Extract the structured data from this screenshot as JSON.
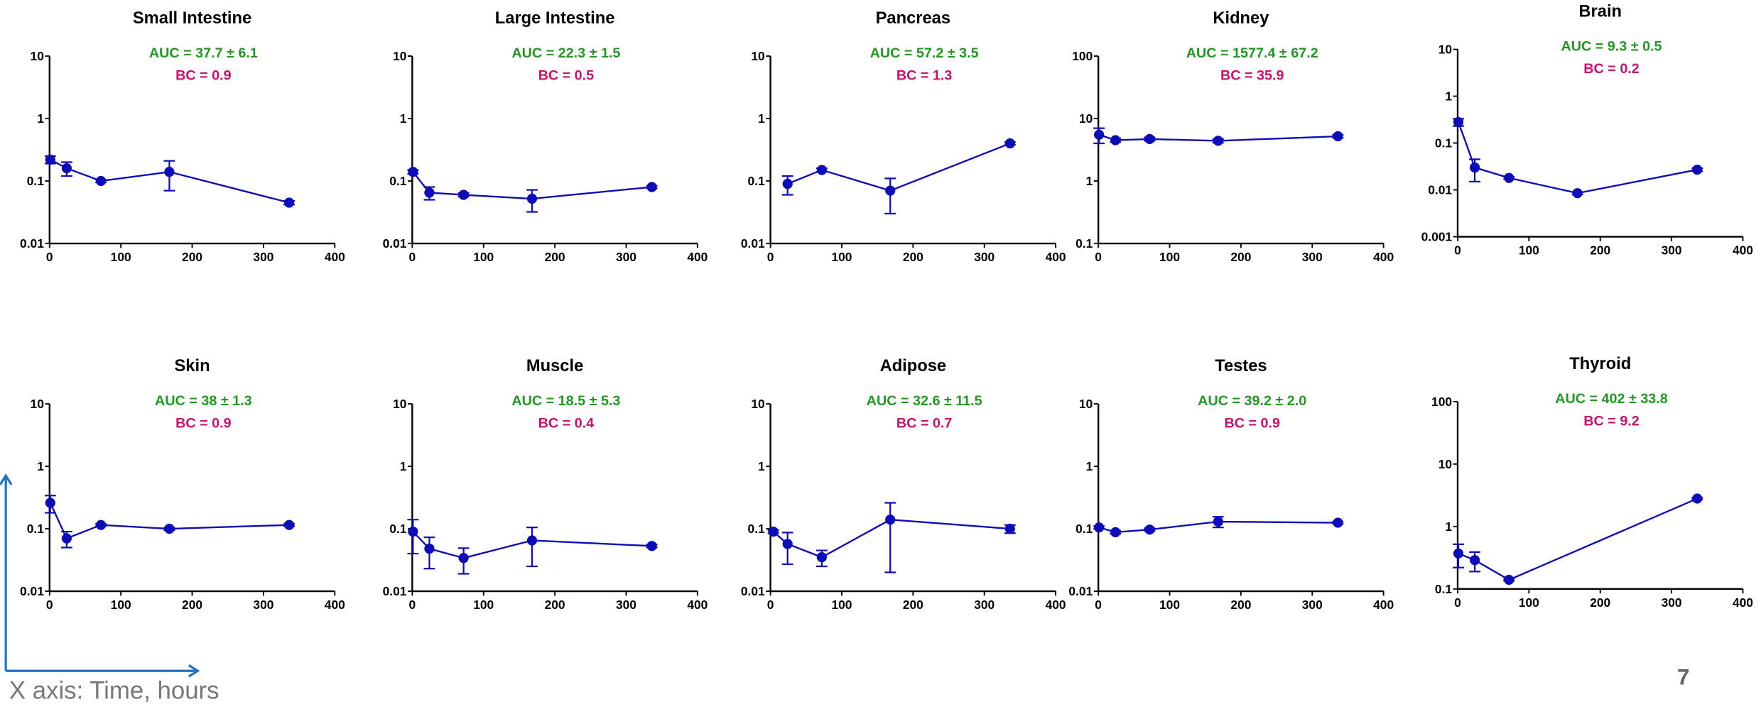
{
  "chart_data": [
    {
      "type": "line",
      "title": "Small Intestine",
      "annotations": [
        {
          "text": "AUC = 37.7 ± 6.1",
          "color": "#1f9a1f"
        },
        {
          "text": "BC = 0.9",
          "color": "#c8106e"
        }
      ],
      "log_y": true,
      "xlim": [
        0,
        400
      ],
      "xticks": [
        0,
        100,
        200,
        300,
        400
      ],
      "ylim": [
        0.01,
        10
      ],
      "yticks": [
        0.01,
        0.1,
        1,
        10
      ],
      "x": [
        1,
        24,
        72,
        168,
        336
      ],
      "series": [
        {
          "color": "#0c0cb8",
          "values": [
            0.22,
            0.16,
            0.1,
            0.14,
            0.045
          ],
          "errors": [
            0.03,
            0.04,
            0.005,
            0.07,
            0.003
          ]
        }
      ]
    },
    {
      "type": "line",
      "title": "Large Intestine",
      "annotations": [
        {
          "text": "AUC = 22.3 ± 1.5",
          "color": "#1f9a1f"
        },
        {
          "text": "BC = 0.5",
          "color": "#c8106e"
        }
      ],
      "log_y": true,
      "xlim": [
        0,
        400
      ],
      "xticks": [
        0,
        100,
        200,
        300,
        400
      ],
      "ylim": [
        0.01,
        10
      ],
      "yticks": [
        0.01,
        0.1,
        1,
        10
      ],
      "x": [
        1,
        24,
        72,
        168,
        336
      ],
      "series": [
        {
          "color": "#0c0cb8",
          "values": [
            0.14,
            0.065,
            0.06,
            0.052,
            0.08
          ],
          "errors": [
            0.01,
            0.015,
            0.004,
            0.02,
            0.004
          ]
        }
      ]
    },
    {
      "type": "line",
      "title": "Pancreas",
      "annotations": [
        {
          "text": "AUC = 57.2 ± 3.5",
          "color": "#1f9a1f"
        },
        {
          "text": "BC = 1.3",
          "color": "#c8106e"
        }
      ],
      "log_y": true,
      "xlim": [
        0,
        400
      ],
      "xticks": [
        0,
        100,
        200,
        300,
        400
      ],
      "ylim": [
        0.01,
        10
      ],
      "yticks": [
        0.01,
        0.1,
        1,
        10
      ],
      "x": [
        24,
        72,
        168,
        336
      ],
      "series": [
        {
          "color": "#0c0cb8",
          "values": [
            0.09,
            0.15,
            0.07,
            0.4
          ],
          "errors": [
            0.03,
            0.01,
            0.04,
            0.02
          ]
        }
      ]
    },
    {
      "type": "line",
      "title": "Kidney",
      "annotations": [
        {
          "text": "AUC = 1577.4 ± 67.2",
          "color": "#1f9a1f"
        },
        {
          "text": "BC = 35.9",
          "color": "#c8106e"
        }
      ],
      "log_y": true,
      "xlim": [
        0,
        400
      ],
      "xticks": [
        0,
        100,
        200,
        300,
        400
      ],
      "ylim": [
        0.1,
        100
      ],
      "yticks": [
        0.1,
        1,
        10,
        100
      ],
      "x": [
        1,
        24,
        72,
        168,
        336
      ],
      "series": [
        {
          "color": "#0c0cb8",
          "values": [
            5.5,
            4.5,
            4.7,
            4.4,
            5.2
          ],
          "errors": [
            1.5,
            0.3,
            0.3,
            0.3,
            0.3
          ]
        }
      ]
    },
    {
      "type": "line",
      "title": "Brain",
      "annotations": [
        {
          "text": "AUC = 9.3 ± 0.5",
          "color": "#1f9a1f"
        },
        {
          "text": "BC = 0.2",
          "color": "#c8106e"
        }
      ],
      "log_y": true,
      "xlim": [
        0,
        400
      ],
      "xticks": [
        0,
        100,
        200,
        300,
        400
      ],
      "ylim": [
        0.001,
        10
      ],
      "yticks": [
        0.001,
        0.01,
        0.1,
        1,
        10
      ],
      "x": [
        1,
        24,
        72,
        168,
        336
      ],
      "series": [
        {
          "color": "#0c0cb8",
          "values": [
            0.28,
            0.03,
            0.018,
            0.0085,
            0.027
          ],
          "errors": [
            0.05,
            0.015,
            0.001,
            0.0005,
            0.002
          ]
        }
      ]
    },
    {
      "type": "line",
      "title": "Skin",
      "annotations": [
        {
          "text": "AUC = 38 ± 1.3",
          "color": "#1f9a1f"
        },
        {
          "text": "BC = 0.9",
          "color": "#c8106e"
        }
      ],
      "log_y": true,
      "xlim": [
        0,
        400
      ],
      "xticks": [
        0,
        100,
        200,
        300,
        400
      ],
      "ylim": [
        0.01,
        10
      ],
      "yticks": [
        0.01,
        0.1,
        1,
        10
      ],
      "x": [
        1,
        24,
        72,
        168,
        336
      ],
      "series": [
        {
          "color": "#0c0cb8",
          "values": [
            0.26,
            0.07,
            0.115,
            0.1,
            0.115
          ],
          "errors": [
            0.08,
            0.02,
            0.005,
            0.005,
            0.005
          ]
        }
      ]
    },
    {
      "type": "line",
      "title": "Muscle",
      "annotations": [
        {
          "text": "AUC = 18.5 ± 5.3",
          "color": "#1f9a1f"
        },
        {
          "text": "BC = 0.4",
          "color": "#c8106e"
        }
      ],
      "log_y": true,
      "xlim": [
        0,
        400
      ],
      "xticks": [
        0,
        100,
        200,
        300,
        400
      ],
      "ylim": [
        0.01,
        10
      ],
      "yticks": [
        0.01,
        0.1,
        1,
        10
      ],
      "x": [
        1,
        24,
        72,
        168,
        336
      ],
      "series": [
        {
          "color": "#0c0cb8",
          "values": [
            0.09,
            0.048,
            0.034,
            0.065,
            0.053
          ],
          "errors": [
            0.05,
            0.025,
            0.015,
            0.04,
            0.003
          ]
        }
      ]
    },
    {
      "type": "line",
      "title": "Adipose",
      "annotations": [
        {
          "text": "AUC = 32.6 ± 11.5",
          "color": "#1f9a1f"
        },
        {
          "text": "BC = 0.7",
          "color": "#c8106e"
        }
      ],
      "log_y": true,
      "xlim": [
        0,
        400
      ],
      "xticks": [
        0,
        100,
        200,
        300,
        400
      ],
      "ylim": [
        0.01,
        10
      ],
      "yticks": [
        0.01,
        0.1,
        1,
        10
      ],
      "x": [
        4,
        24,
        72,
        168,
        336
      ],
      "series": [
        {
          "color": "#0c0cb8",
          "values": [
            0.09,
            0.057,
            0.035,
            0.14,
            0.1
          ],
          "errors": [
            0.005,
            0.03,
            0.01,
            0.12,
            0.015
          ]
        }
      ]
    },
    {
      "type": "line",
      "title": "Testes",
      "annotations": [
        {
          "text": "AUC = 39.2 ± 2.0",
          "color": "#1f9a1f"
        },
        {
          "text": "BC = 0.9",
          "color": "#c8106e"
        }
      ],
      "log_y": true,
      "xlim": [
        0,
        400
      ],
      "xticks": [
        0,
        100,
        200,
        300,
        400
      ],
      "ylim": [
        0.01,
        10
      ],
      "yticks": [
        0.01,
        0.1,
        1,
        10
      ],
      "x": [
        1,
        24,
        72,
        168,
        336
      ],
      "series": [
        {
          "color": "#0c0cb8",
          "values": [
            0.105,
            0.088,
            0.097,
            0.13,
            0.125
          ],
          "errors": [
            0.005,
            0.005,
            0.005,
            0.025,
            0.005
          ]
        }
      ]
    },
    {
      "type": "line",
      "title": "Thyroid",
      "annotations": [
        {
          "text": "AUC = 402 ± 33.8",
          "color": "#1f9a1f"
        },
        {
          "text": "BC = 9.2",
          "color": "#c8106e"
        }
      ],
      "log_y": true,
      "xlim": [
        0,
        400
      ],
      "xticks": [
        0,
        100,
        200,
        300,
        400
      ],
      "ylim": [
        0.1,
        100
      ],
      "yticks": [
        0.1,
        1,
        10,
        100
      ],
      "x": [
        1,
        24,
        72,
        336
      ],
      "series": [
        {
          "color": "#0c0cb8",
          "values": [
            0.37,
            0.29,
            0.14,
            2.8
          ],
          "errors": [
            0.15,
            0.1,
            0.005,
            0.1
          ]
        }
      ]
    }
  ],
  "footer": {
    "axis_note": "X axis: Time, hours",
    "page_number": "7"
  }
}
